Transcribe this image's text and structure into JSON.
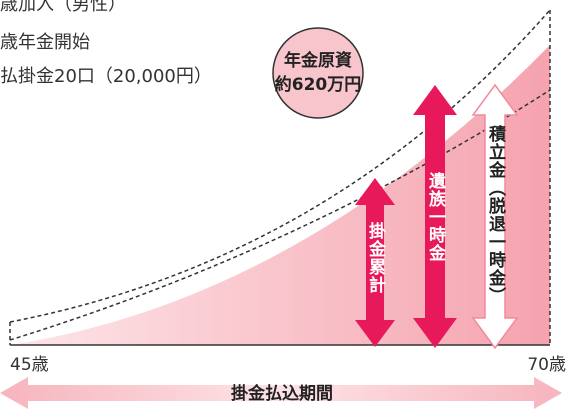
{
  "notes": [
    "歳加入（男性）",
    "歳年金開始",
    "払掛金20口（20,000円）"
  ],
  "badge": {
    "line1": "年金原資",
    "line2": "約620万円"
  },
  "arrows": [
    {
      "label": "掛金累計"
    },
    {
      "label": "遺族一時金"
    },
    {
      "label": "積立金（脱退一時金）"
    }
  ],
  "axis": {
    "start": "45歳",
    "end": "70歳"
  },
  "period": "掛金払込期間"
}
